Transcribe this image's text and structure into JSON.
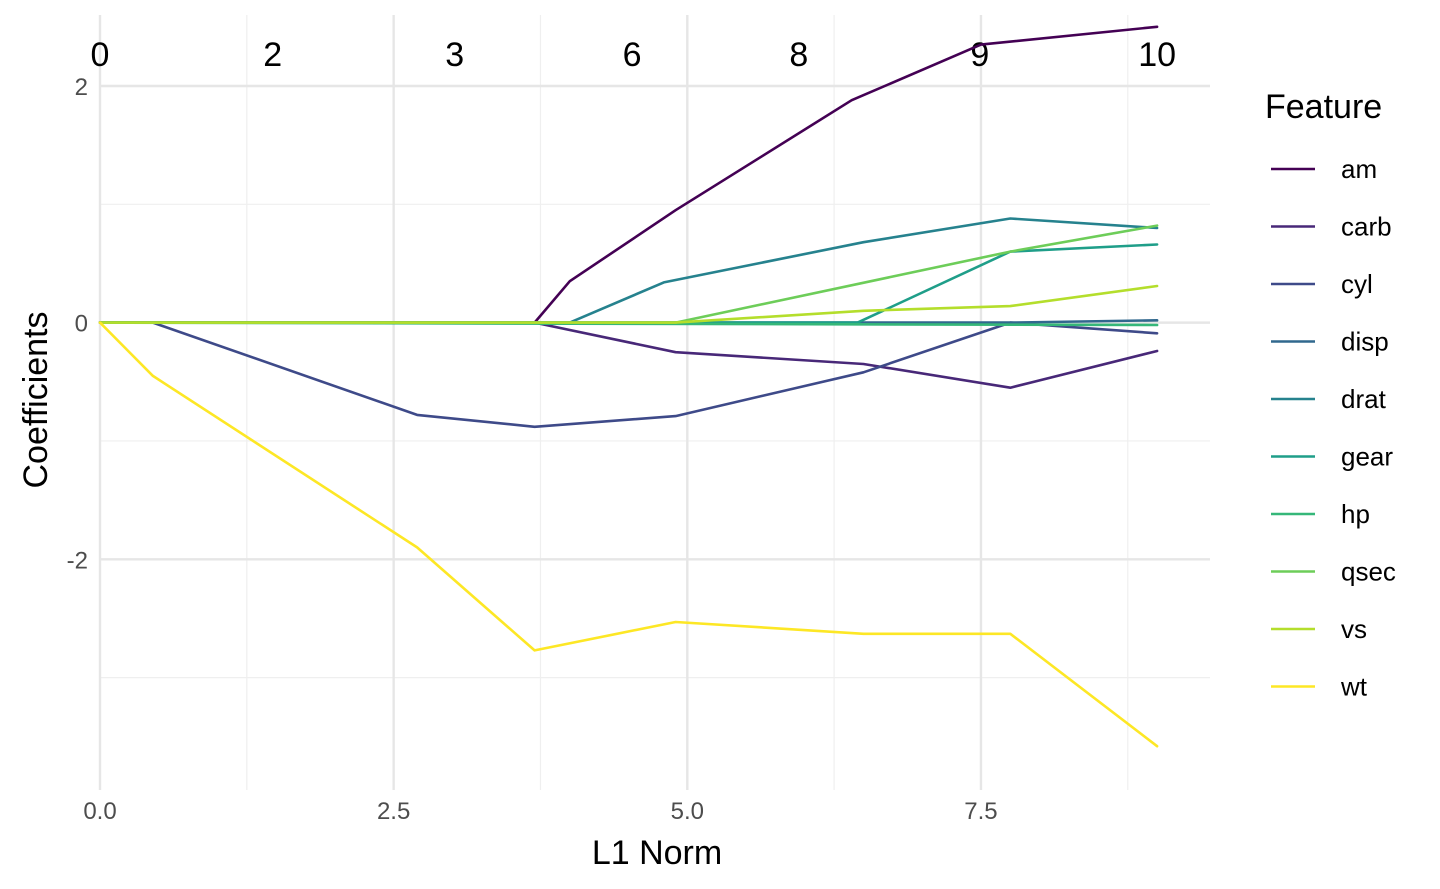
{
  "chart_data": {
    "type": "line",
    "xlabel": "L1 Norm",
    "ylabel": "Coefficients",
    "xlim": [
      0,
      9.45
    ],
    "ylim": [
      -3.95,
      2.6
    ],
    "x_ticks": [
      0.0,
      2.5,
      5.0,
      7.5
    ],
    "x_tick_labels": [
      "0.0",
      "2.5",
      "5.0",
      "7.5"
    ],
    "y_ticks": [
      -2,
      0,
      2
    ],
    "y_tick_labels": [
      "-2",
      "0",
      "2"
    ],
    "top_axis": {
      "positions": [
        0,
        1.47,
        3.02,
        4.53,
        5.95,
        7.49,
        9.0
      ],
      "labels": [
        "0",
        "2",
        "3",
        "6",
        "8",
        "9",
        "10"
      ]
    },
    "grid": true,
    "legend": {
      "title": "Feature",
      "placement": "right"
    },
    "series": [
      {
        "name": "am",
        "color": "#440154",
        "x": [
          0,
          3.7,
          4.0,
          4.9,
          6.4,
          7.5,
          9.0
        ],
        "y": [
          0,
          0,
          0.35,
          0.95,
          1.88,
          2.35,
          2.5
        ]
      },
      {
        "name": "carb",
        "color": "#482878",
        "x": [
          0,
          3.7,
          4.9,
          6.5,
          7.75,
          9.0
        ],
        "y": [
          0,
          0,
          -0.25,
          -0.35,
          -0.55,
          -0.24
        ]
      },
      {
        "name": "cyl",
        "color": "#3E4A89",
        "x": [
          0,
          0.45,
          2.7,
          3.7,
          4.9,
          6.5,
          7.75,
          9.0
        ],
        "y": [
          0,
          0,
          -0.78,
          -0.88,
          -0.79,
          -0.42,
          0,
          -0.09
        ]
      },
      {
        "name": "disp",
        "color": "#31688E",
        "x": [
          0,
          7.75,
          9.0
        ],
        "y": [
          0,
          0,
          0.02
        ]
      },
      {
        "name": "drat",
        "color": "#26828E",
        "x": [
          0,
          4.0,
          4.8,
          6.5,
          7.75,
          9.0
        ],
        "y": [
          0,
          0,
          0.34,
          0.68,
          0.88,
          0.8
        ]
      },
      {
        "name": "gear",
        "color": "#1F9E89",
        "x": [
          0,
          6.45,
          7.75,
          9.0
        ],
        "y": [
          0,
          0,
          0.6,
          0.66
        ]
      },
      {
        "name": "hp",
        "color": "#35B779",
        "x": [
          0,
          9.0
        ],
        "y": [
          0,
          -0.02
        ]
      },
      {
        "name": "qsec",
        "color": "#6DCD59",
        "x": [
          0,
          4.9,
          7.75,
          9.0
        ],
        "y": [
          0,
          0,
          0.6,
          0.82
        ]
      },
      {
        "name": "vs",
        "color": "#B4DE2C",
        "x": [
          0,
          4.9,
          6.5,
          7.75,
          9.0
        ],
        "y": [
          0,
          0,
          0.1,
          0.14,
          0.31
        ]
      },
      {
        "name": "wt",
        "color": "#FDE725",
        "x": [
          0,
          0.45,
          2.7,
          3.7,
          4.9,
          6.5,
          7.75,
          9.0
        ],
        "y": [
          0,
          -0.45,
          -1.9,
          -2.77,
          -2.53,
          -2.63,
          -2.63,
          -3.58
        ]
      }
    ]
  }
}
